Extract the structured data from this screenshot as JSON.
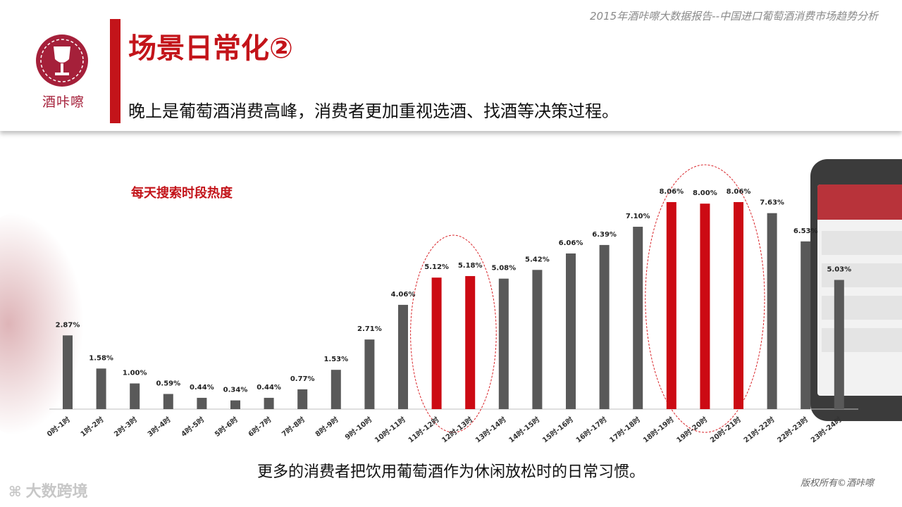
{
  "header": {
    "report_title": "2015年酒咔嚓大数据报告--中国进口葡萄酒消费市场趋势分析",
    "logo_text": "酒咔嚓",
    "page_title": "场景日常化②",
    "subtitle": "晚上是葡萄酒消费高峰，消费者更加重视选酒、找酒等决策过程。"
  },
  "footer": {
    "caption": "更多的消费者把饮用葡萄酒作为休闲放松时的日常习惯。",
    "copyright": "版权所有©酒咔嚓",
    "watermark": "大数跨境"
  },
  "colors": {
    "accent": "#c3141a",
    "bar_normal": "#595959",
    "bar_highlight": "#cc0a13",
    "ellipse": "#d9262b"
  },
  "chart_data": {
    "type": "bar",
    "title": "每天搜索时段热度",
    "categories": [
      "0时-1时",
      "1时-2时",
      "2时-3时",
      "3时-4时",
      "4时-5时",
      "5时-6时",
      "6时-7时",
      "7时-8时",
      "8时-9时",
      "9时-10时",
      "10时-11时",
      "11时-12时",
      "12时-13时",
      "13时-14时",
      "14时-15时",
      "15时-16时",
      "16时-17时",
      "17时-18时",
      "18时-19时",
      "19时-20时",
      "20时-21时",
      "21时-22时",
      "22时-23时",
      "23时-24时"
    ],
    "values": [
      2.87,
      1.58,
      1.0,
      0.59,
      0.44,
      0.34,
      0.44,
      0.77,
      1.53,
      2.71,
      4.06,
      5.12,
      5.18,
      5.08,
      5.42,
      6.06,
      6.39,
      7.1,
      8.06,
      8.0,
      8.06,
      7.63,
      6.53,
      5.03
    ],
    "value_labels": [
      "2.87%",
      "1.58%",
      "1.00%",
      "0.59%",
      "0.44%",
      "0.34%",
      "0.44%",
      "0.77%",
      "1.53%",
      "2.71%",
      "4.06%",
      "5.12%",
      "5.18%",
      "5.08%",
      "5.42%",
      "6.06%",
      "6.39%",
      "7.10%",
      "8.06%",
      "8.00%",
      "8.06%",
      "7.63%",
      "6.53%",
      "5.03%"
    ],
    "highlighted": [
      11,
      12,
      18,
      19,
      20
    ],
    "highlight_groups": [
      [
        11,
        12
      ],
      [
        18,
        19,
        20
      ]
    ],
    "unit": "%",
    "ylim": [
      0,
      8.06
    ],
    "xlabel": "",
    "ylabel": "",
    "grid": false
  }
}
